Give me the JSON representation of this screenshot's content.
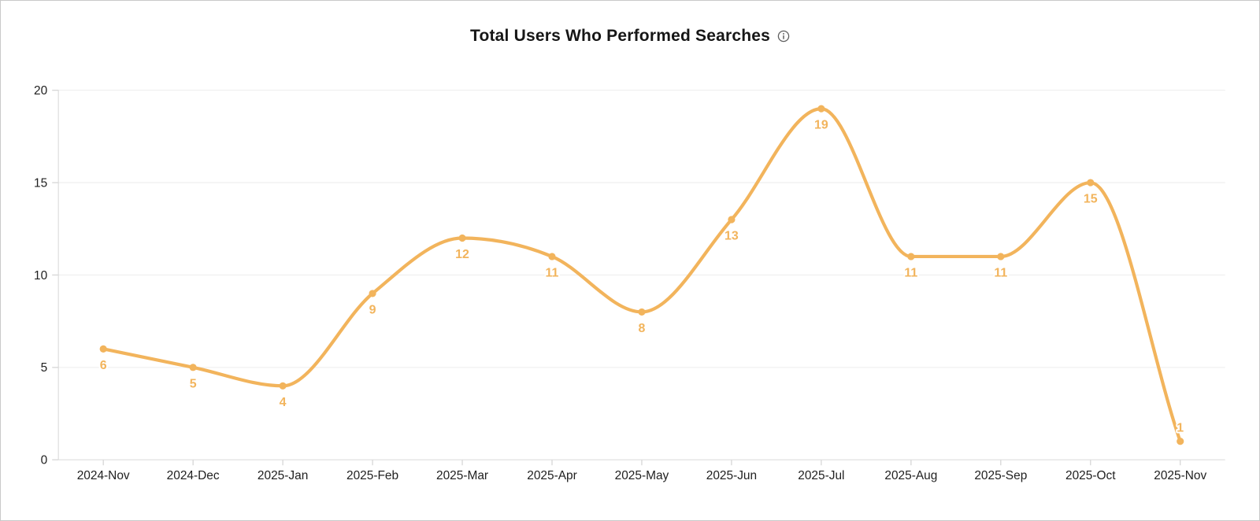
{
  "header": {
    "title": "Total Users Who Performed Searches",
    "info_icon": "info-icon"
  },
  "colors": {
    "line": "#f2b45c",
    "point": "#f2b45c",
    "point_label": "#f2b45c",
    "grid": "#f0f0f0",
    "axis_line": "#e0e0e0",
    "tick": "#d6d6d6",
    "axis_text": "#212121",
    "title_text": "#161616",
    "info_icon": "#5f5f5f",
    "background": "#ffffff",
    "frame_border": "#c9c9c9"
  },
  "chart_data": {
    "type": "line",
    "title": "Total Users Who Performed Searches",
    "categories": [
      "2024-Nov",
      "2024-Dec",
      "2025-Jan",
      "2025-Feb",
      "2025-Mar",
      "2025-Apr",
      "2025-May",
      "2025-Jun",
      "2025-Jul",
      "2025-Aug",
      "2025-Sep",
      "2025-Oct",
      "2025-Nov"
    ],
    "values": [
      6,
      5,
      4,
      9,
      12,
      11,
      8,
      13,
      19,
      11,
      11,
      15,
      1
    ],
    "xlabel": "",
    "ylabel": "",
    "ylim": [
      0,
      20
    ],
    "yticks": [
      0,
      5,
      10,
      15,
      20
    ],
    "grid": true,
    "smooth": true,
    "legend": "none",
    "point_labels_visible": true
  }
}
